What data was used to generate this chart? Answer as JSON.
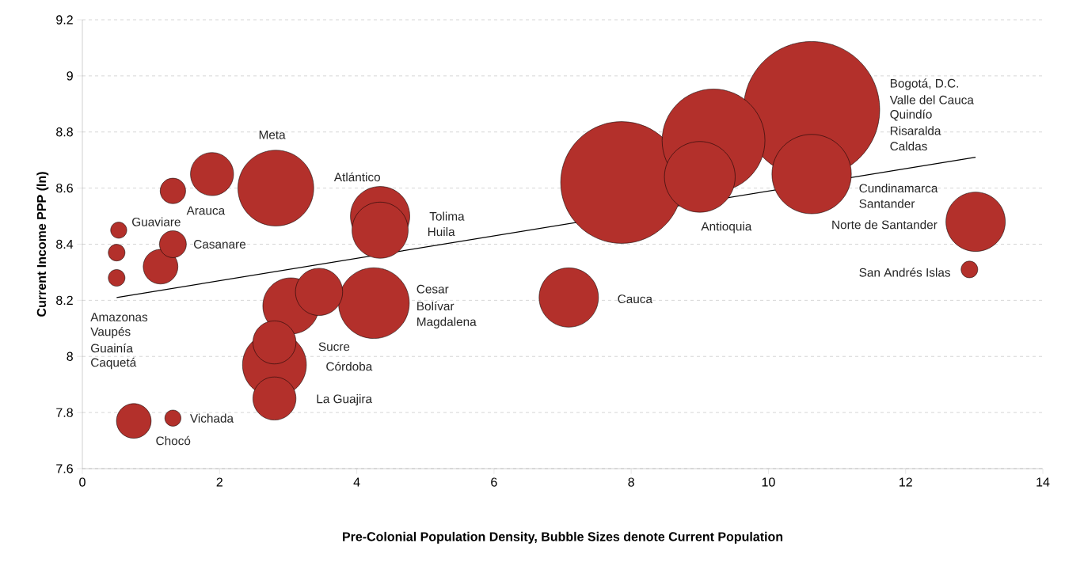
{
  "chart_data": {
    "type": "bubble",
    "xlabel": "Pre-Colonial Population Density, Bubble Sizes denote Current Population",
    "ylabel": "Current Income PPP (ln)",
    "xlim": [
      0,
      14
    ],
    "xticks": [
      0,
      2,
      4,
      6,
      8,
      10,
      12,
      14
    ],
    "ylim": [
      7.6,
      9.2
    ],
    "yticks": [
      7.6,
      7.8,
      8,
      8.2,
      8.4,
      8.6,
      8.8,
      9,
      9.2
    ],
    "grid": "y",
    "series": [
      {
        "color": "#b3302b",
        "x": [
          10.63,
          7.86,
          9.2,
          10.63,
          9.0,
          2.82,
          4.25,
          4.34,
          4.34,
          3.04,
          7.09,
          13.02,
          3.45,
          2.8,
          1.89,
          2.8,
          2.8,
          1.14,
          0.75,
          1.32,
          1.32,
          0.53,
          1.32,
          0.5,
          0.5,
          12.93
        ],
        "values": [
          8.88,
          8.62,
          8.77,
          8.65,
          8.64,
          8.6,
          8.19,
          8.5,
          8.45,
          8.18,
          8.21,
          8.48,
          8.23,
          7.97,
          8.65,
          8.05,
          7.85,
          8.32,
          7.77,
          8.4,
          8.59,
          8.45,
          7.78,
          8.37,
          8.28,
          8.31
        ],
        "sizes": [
          1,
          0.8,
          0.57,
          0.34,
          0.27,
          0.31,
          0.27,
          0.19,
          0.17,
          0.17,
          0.19,
          0.19,
          0.12,
          0.22,
          0.1,
          0.1,
          0.1,
          0.065,
          0.065,
          0.039,
          0.035,
          0.014,
          0.014,
          0.015,
          0.015,
          0.015
        ]
      },
      {
        "type": "line",
        "color": "#000000",
        "x": [
          0.5,
          13.02
        ],
        "values": [
          8.21,
          8.71
        ]
      }
    ],
    "annotations": [
      "Bogotá, D.C.",
      "Valle del Cauca",
      "Quindío",
      "Risaralda",
      "Caldas",
      "Santander",
      "Cundinamarca",
      "Antioquia",
      "Norte de Santander",
      "San Andrés Islas",
      "Cauca",
      "Tolima",
      "Huila",
      "Atlántico",
      "Meta",
      "Arauca",
      "Guaviare",
      "Casanare",
      "Amazonas",
      "Guainía",
      "Caquetá",
      "Vaupés",
      "Cesar",
      "Magdalena",
      "Bolívar",
      "Sucre",
      "Córdoba",
      "La Guajira",
      "Chocó",
      "Vichada"
    ]
  }
}
